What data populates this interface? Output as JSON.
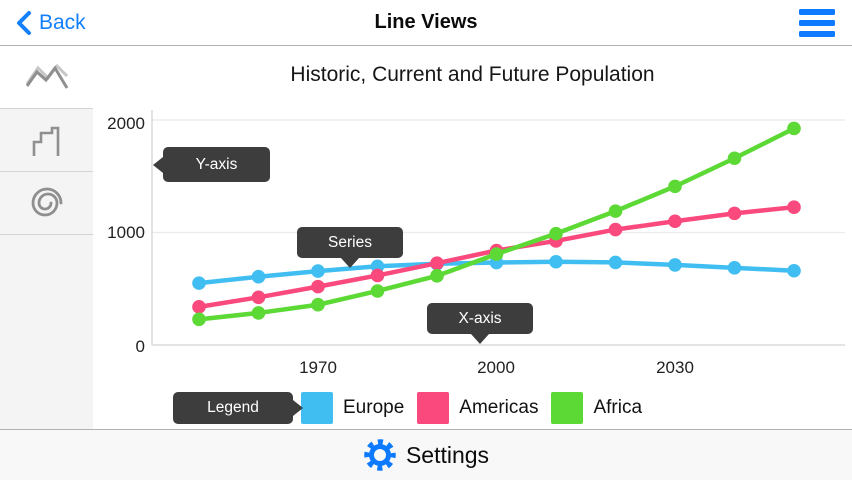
{
  "nav": {
    "back_label": "Back",
    "title": "Line Views"
  },
  "sidebar": {
    "items": [
      {
        "icon": "mountain-line-chart-icon",
        "selected": true
      },
      {
        "icon": "stepped-line-chart-icon",
        "selected": false
      },
      {
        "icon": "spiral-radial-chart-icon",
        "selected": false
      }
    ]
  },
  "chart_data": {
    "type": "line",
    "title": "Historic, Current and Future Population",
    "x": [
      1950,
      1960,
      1970,
      1980,
      1990,
      2000,
      2010,
      2020,
      2030,
      2040,
      2050
    ],
    "series": [
      {
        "name": "Europe",
        "color": "#41BEF1",
        "values": [
          550,
          607,
          657,
          700,
          722,
          733,
          740,
          734,
          712,
          686,
          660
        ]
      },
      {
        "name": "Americas",
        "color": "#F9497D",
        "values": [
          339,
          424,
          519,
          618,
          727,
          840,
          925,
          1026,
          1100,
          1170,
          1225
        ]
      },
      {
        "name": "Africa",
        "color": "#5DD935",
        "values": [
          228,
          285,
          358,
          480,
          615,
          808,
          990,
          1190,
          1410,
          1660,
          1925
        ]
      }
    ],
    "x_ticks": [
      1970,
      2000,
      2030
    ],
    "y_ticks": [
      0,
      1000,
      2000
    ],
    "xlim": [
      1944,
      2058
    ],
    "ylim": [
      0,
      2090
    ],
    "grid": "horizontal-only",
    "legend_position": "bottom",
    "marker": "circle"
  },
  "callouts": {
    "y_axis": "Y-axis",
    "series": "Series",
    "x_axis": "X-axis",
    "legend": "Legend"
  },
  "footer": {
    "settings_label": "Settings"
  },
  "colors": {
    "accent_blue": "#0d7aff",
    "callout_bg": "#3d3d3d",
    "grid_line": "#eaeaea",
    "axis_line": "#d4d4d4"
  }
}
